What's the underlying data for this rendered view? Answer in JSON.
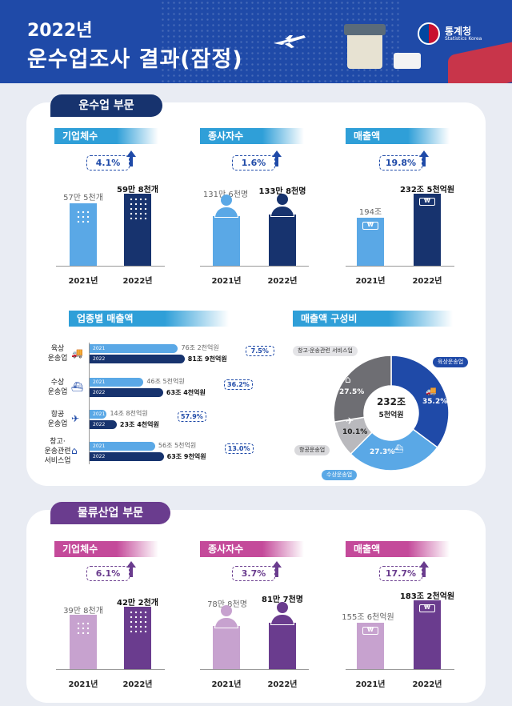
{
  "header": {
    "year_title": "2022년",
    "title": "운수업조사 결과(잠정)",
    "logo_name": "통계청",
    "logo_sub": "Statistics Korea"
  },
  "transport": {
    "section": "운수업 부문",
    "establishments": {
      "label": "기업체수",
      "rate": "4.1%",
      "v2021": "57만 5천개",
      "v2022": "59만 8천개",
      "y2021": "2021년",
      "y2022": "2022년"
    },
    "employees": {
      "label": "종사자수",
      "rate": "1.6%",
      "v2021": "131만 6천명",
      "v2022": "133만 8천명",
      "y2021": "2021년",
      "y2022": "2022년"
    },
    "sales": {
      "label": "매출액",
      "rate": "19.8%",
      "v2021": "194조",
      "v2022": "232조 5천억원",
      "y2021": "2021년",
      "y2022": "2022년"
    },
    "industry_sales": {
      "label": "업종별 매출액",
      "items": [
        {
          "name": "육상\n운송업",
          "l2021": "2021",
          "l2022": "2022",
          "v2021": "76조 2천억원",
          "v2022": "81조 9천억원",
          "rate": "7.5%",
          "n2021": 76.2,
          "n2022": 81.9
        },
        {
          "name": "수상\n운송업",
          "l2021": "2021",
          "l2022": "2022",
          "v2021": "46조 5천억원",
          "v2022": "63조 4천억원",
          "rate": "36.2%",
          "n2021": 46.5,
          "n2022": 63.4
        },
        {
          "name": "항공\n운송업",
          "l2021": "2021",
          "l2022": "2022",
          "v2021": "14조 8천억원",
          "v2022": "23조 4천억원",
          "rate": "57.9%",
          "n2021": 14.8,
          "n2022": 23.4
        },
        {
          "name": "창고·\n운송관련\n서비스업",
          "l2021": "2021",
          "l2022": "2022",
          "v2021": "56조 5천억원",
          "v2022": "63조 9천억원",
          "rate": "13.0%",
          "n2021": 56.5,
          "n2022": 63.9
        }
      ]
    },
    "composition": {
      "label": "매출액 구성비",
      "center_top": "232조",
      "center_bottom": "5천억원",
      "slices": [
        {
          "name": "육상운송업",
          "pct": 35.2,
          "text": "35.2%",
          "color": "#1f4aa8"
        },
        {
          "name": "수상운송업",
          "pct": 27.3,
          "text": "27.3%",
          "color": "#5aa8e6"
        },
        {
          "name": "항공운송업",
          "pct": 10.1,
          "text": "10.1%",
          "color": "#b9b9bd"
        },
        {
          "name": "창고·운송관련 서비스업",
          "pct": 27.5,
          "text": "27.5%",
          "color": "#6e6e73"
        }
      ]
    }
  },
  "logistics": {
    "section": "물류산업 부문",
    "establishments": {
      "label": "기업체수",
      "rate": "6.1%",
      "v2021": "39만 8천개",
      "v2022": "42만 2천개",
      "y2021": "2021년",
      "y2022": "2022년"
    },
    "employees": {
      "label": "종사자수",
      "rate": "3.7%",
      "v2021": "78만 8천명",
      "v2022": "81만 7천명",
      "y2021": "2021년",
      "y2022": "2022년"
    },
    "sales": {
      "label": "매출액",
      "rate": "17.7%",
      "v2021": "155조 6천억원",
      "v2022": "183조 2천억원",
      "y2021": "2021년",
      "y2022": "2022년"
    }
  },
  "colors": {
    "navy": "#17336e",
    "blue": "#1f4aa8",
    "light_blue": "#5aa8e6",
    "purple": "#6a3c8e",
    "light_purple": "#c7a2cf"
  }
}
